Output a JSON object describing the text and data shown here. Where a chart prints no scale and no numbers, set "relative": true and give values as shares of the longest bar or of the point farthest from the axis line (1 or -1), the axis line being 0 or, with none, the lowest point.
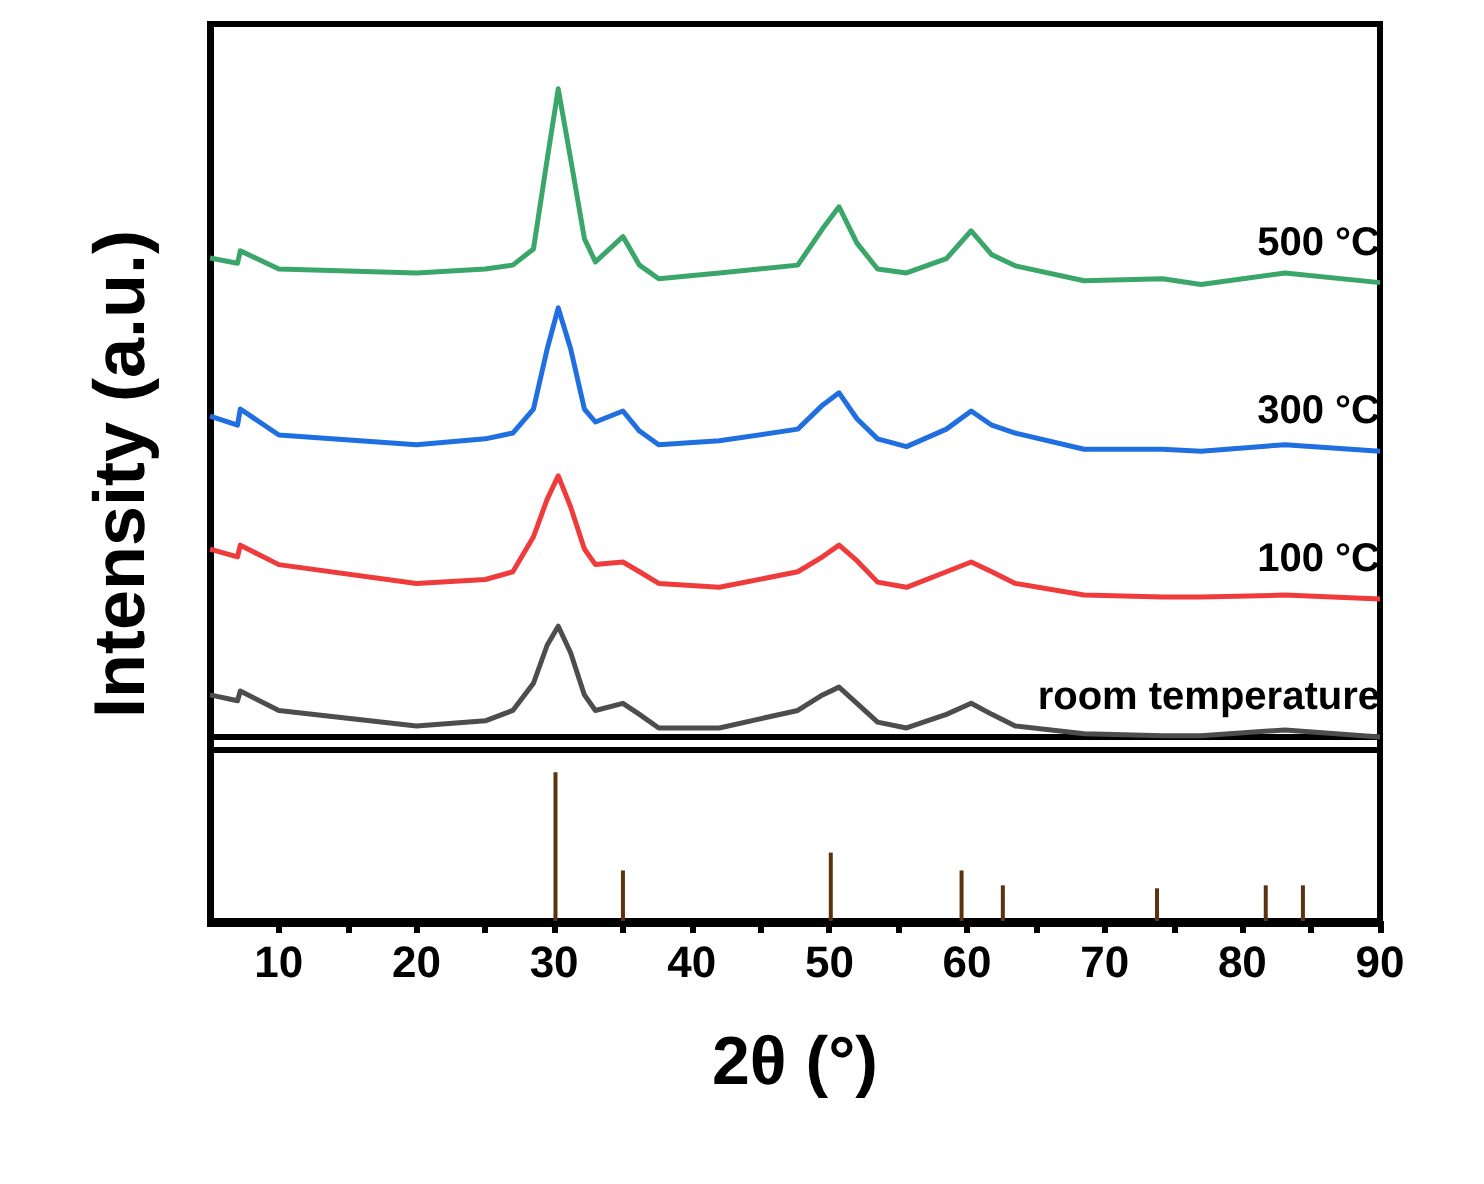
{
  "chart_data": [
    {
      "type": "line",
      "ylabel": "Intensity (a.u.)",
      "relative": true,
      "xlim": [
        5,
        90
      ],
      "tick_labels": false,
      "legend": false,
      "grid": false,
      "marker": "none",
      "line_style": "solid",
      "x": [
        5,
        7,
        7.2,
        10,
        20,
        25,
        27,
        28.5,
        29.5,
        30.3,
        31.2,
        32.2,
        33,
        35,
        36.2,
        37.6,
        42,
        47.7,
        49.5,
        50.7,
        52,
        53.5,
        55.6,
        58.5,
        60.3,
        61.8,
        63.5,
        68.5,
        74.2,
        77,
        83.1,
        90
      ],
      "series": [
        {
          "name": "room temperature",
          "color": "#4d4d4d",
          "values": [
            0.065,
            0.056,
            0.071,
            0.041,
            0.017,
            0.025,
            0.041,
            0.083,
            0.142,
            0.171,
            0.13,
            0.065,
            0.041,
            0.052,
            0.035,
            0.014,
            0.014,
            0.041,
            0.065,
            0.077,
            0.052,
            0.023,
            0.014,
            0.035,
            0.052,
            0.035,
            0.017,
            0.005,
            0.002,
            0.002,
            0.011,
            0
          ]
        },
        {
          "name": "100 °C",
          "color": "#ef3b3b",
          "values": [
            0.29,
            0.278,
            0.296,
            0.266,
            0.237,
            0.243,
            0.255,
            0.309,
            0.367,
            0.403,
            0.355,
            0.29,
            0.266,
            0.27,
            0.255,
            0.237,
            0.231,
            0.255,
            0.278,
            0.296,
            0.272,
            0.239,
            0.231,
            0.255,
            0.27,
            0.255,
            0.237,
            0.219,
            0.216,
            0.216,
            0.219,
            0.213
          ]
        },
        {
          "name": "300 °C",
          "color": "#1f6fe0",
          "values": [
            0.495,
            0.481,
            0.506,
            0.466,
            0.451,
            0.46,
            0.469,
            0.506,
            0.599,
            0.662,
            0.599,
            0.506,
            0.486,
            0.503,
            0.472,
            0.451,
            0.457,
            0.475,
            0.512,
            0.531,
            0.491,
            0.46,
            0.448,
            0.475,
            0.503,
            0.481,
            0.469,
            0.444,
            0.444,
            0.441,
            0.451,
            0.441
          ]
        },
        {
          "name": "500 °C",
          "color": "#3aa66a",
          "values": [
            0.739,
            0.731,
            0.75,
            0.722,
            0.716,
            0.722,
            0.728,
            0.753,
            0.892,
            1.0,
            0.892,
            0.769,
            0.733,
            0.772,
            0.728,
            0.707,
            0.716,
            0.728,
            0.784,
            0.818,
            0.762,
            0.722,
            0.716,
            0.738,
            0.781,
            0.744,
            0.727,
            0.704,
            0.707,
            0.698,
            0.716,
            0.701
          ]
        }
      ]
    },
    {
      "type": "bar",
      "xlabel": "2θ (°)",
      "relative": true,
      "xlim": [
        5,
        90
      ],
      "tick_labels": "x",
      "grid": false,
      "legend": false,
      "xticks": [
        10,
        {
          "value": 15,
          "label": null
        },
        20,
        {
          "value": 25,
          "label": null
        },
        30,
        {
          "value": 35,
          "label": null
        },
        40,
        {
          "value": 45,
          "label": null
        },
        50,
        {
          "value": 55,
          "label": null
        },
        60,
        {
          "value": 65,
          "label": null
        },
        70,
        {
          "value": 75,
          "label": null
        },
        80,
        {
          "value": 85,
          "label": null
        },
        90
      ],
      "x": [
        30.1,
        35.0,
        50.1,
        59.6,
        62.6,
        73.8,
        81.7,
        84.4
      ],
      "values": [
        1,
        0.34,
        0.46,
        0.34,
        0.24,
        0.22,
        0.24,
        0.24
      ],
      "color": "#5a3310"
    }
  ]
}
